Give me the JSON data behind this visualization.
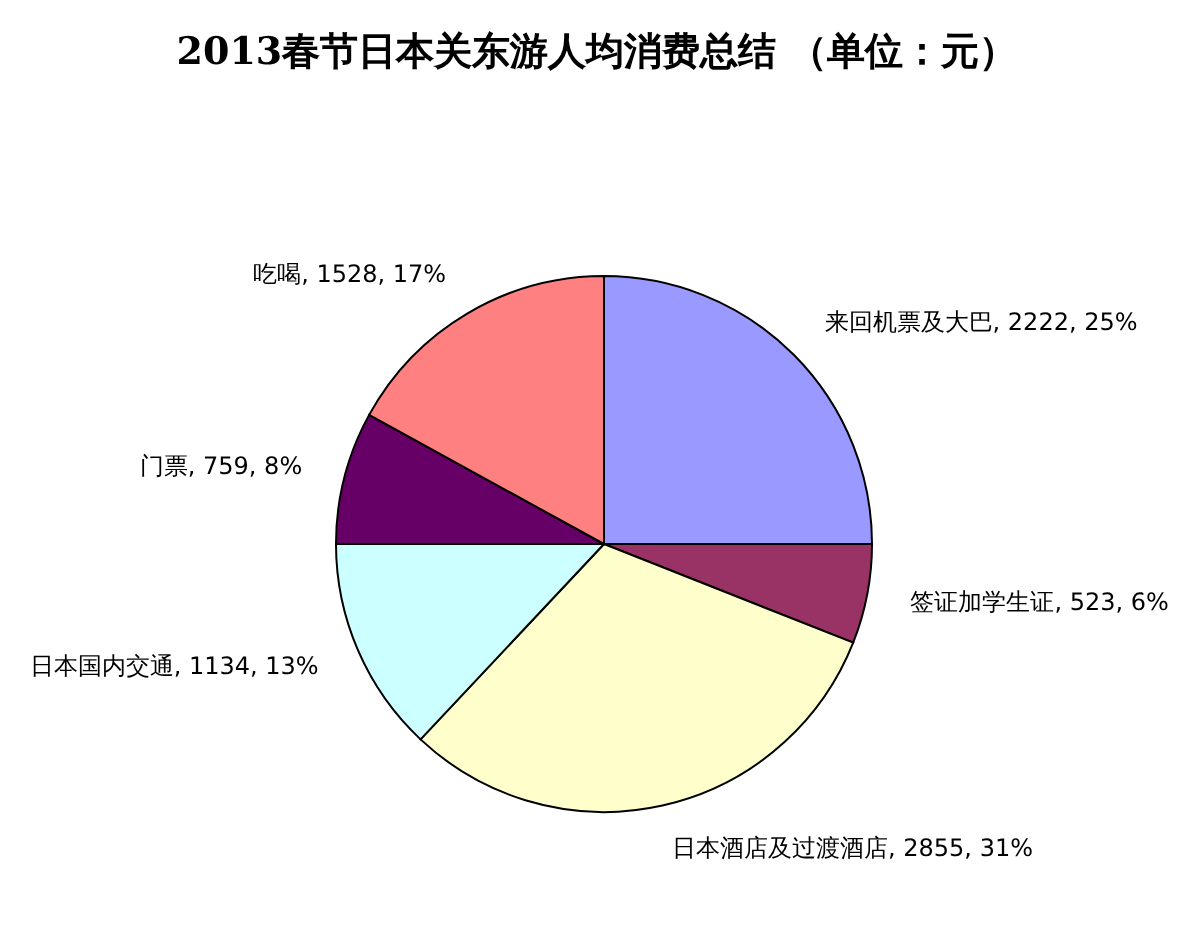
{
  "chart_data": {
    "type": "pie",
    "title": "2013春节日本关东游人均消费总结 （单位：元）",
    "categories": [
      "来回机票及大巴",
      "签证加学生证",
      "日本酒店及过渡酒店",
      "日本国内交通",
      "门票",
      "吃喝"
    ],
    "values": [
      25,
      6,
      31,
      13,
      8,
      17
    ],
    "value_labels": [
      "2222, 25%",
      "523, 6%",
      "2855, 31%",
      "1134, 13%",
      "759, 8%",
      "1528, 17%"
    ],
    "colors": [
      "#9999ff",
      "#993366",
      "#ffffcc",
      "#ccffff",
      "#660066",
      "#ff8080"
    ]
  }
}
